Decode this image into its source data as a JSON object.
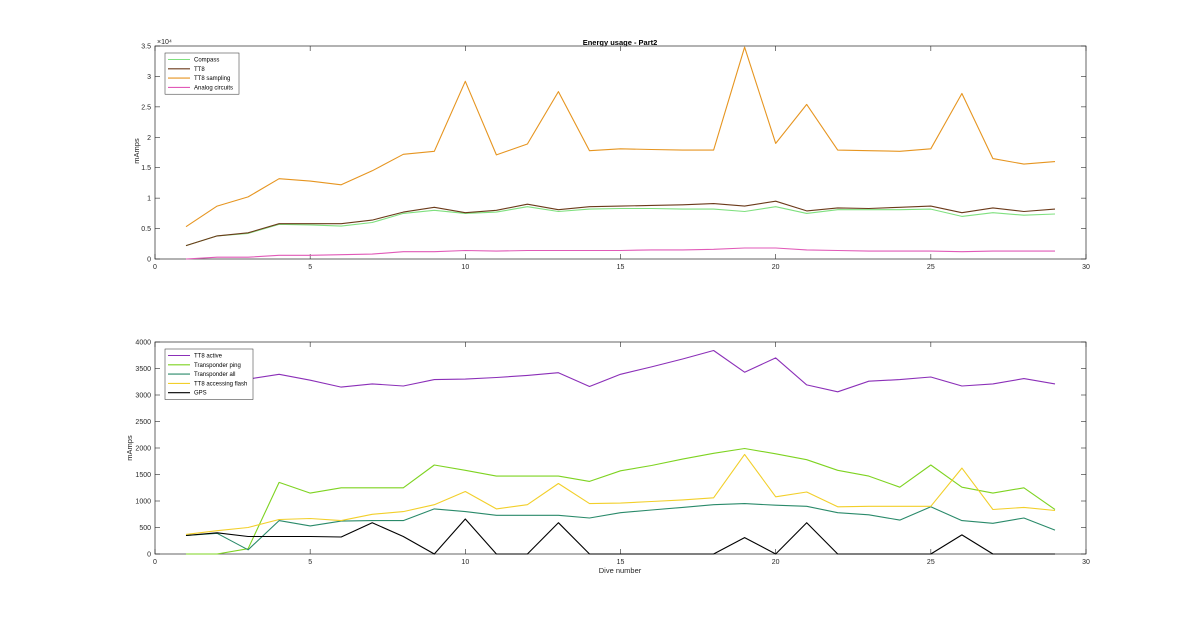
{
  "chart_data": [
    {
      "type": "line",
      "title": "Energy usage - Part2",
      "xlabel": "",
      "ylabel": "mAmps",
      "exponent_label": "×10⁴",
      "xlim": [
        0,
        30
      ],
      "ylim": [
        0,
        35000
      ],
      "xticks": [
        0,
        5,
        10,
        15,
        20,
        25,
        30
      ],
      "yticks": [
        0,
        5000,
        10000,
        15000,
        20000,
        25000,
        30000,
        35000
      ],
      "ytick_labels": [
        "0",
        "0.5",
        "1",
        "1.5",
        "2",
        "2.5",
        "3",
        "3.5"
      ],
      "grid": false,
      "legend_position": "top-left",
      "x": [
        1,
        2,
        3,
        4,
        5,
        6,
        7,
        8,
        9,
        10,
        11,
        12,
        13,
        14,
        15,
        16,
        17,
        18,
        19,
        20,
        21,
        22,
        23,
        24,
        25,
        26,
        27,
        28,
        29
      ],
      "series": [
        {
          "name": "Compass",
          "color": "#7fe07f",
          "values": [
            2200,
            3800,
            4200,
            5700,
            5600,
            5400,
            6000,
            7500,
            8000,
            7500,
            7700,
            8600,
            7800,
            8200,
            8300,
            8300,
            8200,
            8200,
            7800,
            8600,
            7500,
            8100,
            8100,
            8100,
            8200,
            7000,
            7600,
            7200,
            7400
          ]
        },
        {
          "name": "TT8",
          "color": "#6b3a1a",
          "values": [
            2200,
            3800,
            4300,
            5800,
            5800,
            5800,
            6400,
            7700,
            8500,
            7600,
            8000,
            9000,
            8100,
            8600,
            8700,
            8800,
            8900,
            9100,
            8700,
            9500,
            7900,
            8400,
            8300,
            8500,
            8700,
            7600,
            8400,
            7800,
            8200
          ]
        },
        {
          "name": "TT8 sampling",
          "color": "#e69520",
          "values": [
            5300,
            8700,
            10200,
            13200,
            12800,
            12200,
            14500,
            17200,
            17700,
            29200,
            17100,
            18900,
            27500,
            17800,
            18100,
            18000,
            17900,
            17900,
            34800,
            19000,
            25400,
            17900,
            17800,
            17700,
            18100,
            27200,
            16500,
            15600,
            16000
          ]
        },
        {
          "name": "Analog circuits",
          "color": "#e15ab8",
          "values": [
            0,
            300,
            300,
            600,
            600,
            700,
            800,
            1200,
            1200,
            1400,
            1300,
            1400,
            1400,
            1400,
            1400,
            1500,
            1500,
            1600,
            1800,
            1800,
            1500,
            1400,
            1300,
            1300,
            1300,
            1200,
            1300,
            1300,
            1300
          ]
        }
      ]
    },
    {
      "type": "line",
      "title": "",
      "xlabel": "Dive number",
      "ylabel": "mAmps",
      "xlim": [
        0,
        30
      ],
      "ylim": [
        0,
        4000
      ],
      "xticks": [
        0,
        5,
        10,
        15,
        20,
        25,
        30
      ],
      "yticks": [
        0,
        500,
        1000,
        1500,
        2000,
        2500,
        3000,
        3500,
        4000
      ],
      "ytick_labels": [
        "0",
        "500",
        "1000",
        "1500",
        "2000",
        "2500",
        "3000",
        "3500",
        "4000"
      ],
      "grid": false,
      "legend_position": "top-left",
      "x": [
        1,
        2,
        3,
        4,
        5,
        6,
        7,
        8,
        9,
        10,
        11,
        12,
        13,
        14,
        15,
        16,
        17,
        18,
        19,
        20,
        21,
        22,
        23,
        24,
        25,
        26,
        27,
        28,
        29
      ],
      "series": [
        {
          "name": "TT8 active",
          "color": "#8b2fb8",
          "values": [
            2920,
            3290,
            3300,
            3390,
            3280,
            3150,
            3210,
            3170,
            3290,
            3300,
            3330,
            3370,
            3420,
            3160,
            3390,
            3530,
            3680,
            3840,
            3430,
            3700,
            3190,
            3060,
            3260,
            3290,
            3340,
            3170,
            3210,
            3310,
            3210
          ]
        },
        {
          "name": "Transponder ping",
          "color": "#7ed321",
          "values": [
            0,
            0,
            100,
            1350,
            1150,
            1250,
            1250,
            1250,
            1680,
            1580,
            1470,
            1470,
            1470,
            1370,
            1570,
            1670,
            1790,
            1900,
            1990,
            1890,
            1780,
            1580,
            1470,
            1260,
            1680,
            1260,
            1150,
            1250,
            840
          ]
        },
        {
          "name": "Transponder all",
          "color": "#2a8a6a",
          "values": [
            350,
            390,
            80,
            630,
            530,
            620,
            630,
            630,
            850,
            800,
            730,
            730,
            730,
            680,
            780,
            830,
            880,
            930,
            950,
            920,
            900,
            780,
            740,
            640,
            890,
            630,
            580,
            680,
            450
          ]
        },
        {
          "name": "TT8 accessing flash",
          "color": "#f2cf2a",
          "values": [
            370,
            440,
            500,
            650,
            670,
            630,
            750,
            800,
            930,
            1180,
            850,
            930,
            1330,
            950,
            960,
            990,
            1020,
            1060,
            1880,
            1080,
            1170,
            890,
            900,
            900,
            900,
            1620,
            840,
            880,
            820
          ]
        },
        {
          "name": "GPS",
          "color": "#000000",
          "values": [
            350,
            400,
            330,
            330,
            330,
            320,
            590,
            330,
            0,
            660,
            0,
            0,
            590,
            0,
            0,
            0,
            0,
            0,
            310,
            0,
            590,
            0,
            0,
            0,
            0,
            360,
            0,
            0,
            0
          ]
        }
      ]
    }
  ]
}
